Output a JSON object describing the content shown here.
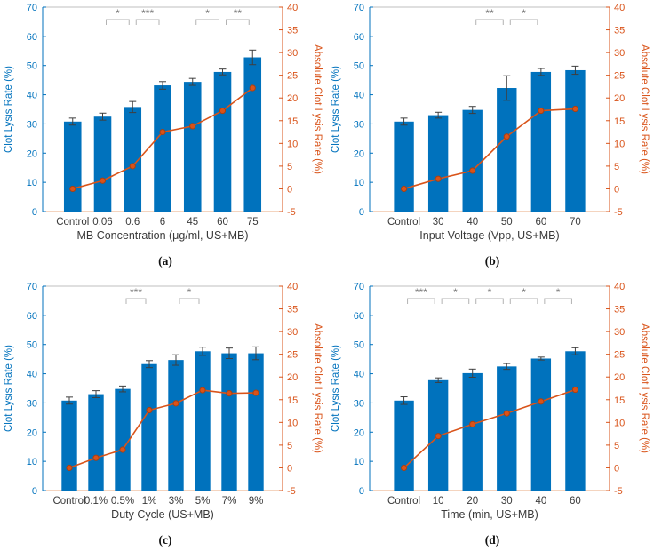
{
  "figure": {
    "background": "#ffffff",
    "left_axis_label": "Clot Lysis Rate (%)",
    "right_axis_label": "Absolute Clot Lysis Rate (%)"
  },
  "colors": {
    "bar": "#0072BD",
    "line": "#D95319",
    "marker_fill": "#D95319",
    "marker_edge": "#A84012",
    "left_axis": "#0072BD",
    "right_axis": "#D95319",
    "error_bar": "#3F3F3F",
    "x_tick_text": "#3A3A3A",
    "top_spine": "#BFBFBF",
    "bottom_spine": "#E8A87F",
    "bracket": "#B3B3B3",
    "sig_text": "#757575",
    "caption": "#111111"
  },
  "axes": {
    "left_label": "Clot Lysis Rate (%)",
    "right_label": "Absolute Clot Lysis Rate (%)",
    "left_min": 0,
    "left_max": 70,
    "right_min": -5,
    "right_max": 40,
    "left_ticks": [
      0,
      10,
      20,
      30,
      40,
      50,
      60,
      70
    ],
    "right_ticks": [
      -5,
      0,
      5,
      10,
      15,
      20,
      25,
      30,
      35,
      40
    ],
    "grid": false,
    "legend": "none"
  },
  "chart_data": [
    {
      "type": "bar",
      "caption": "(a)",
      "xlabel": "MB Concentration (μg/ml, US+MB)",
      "ylabel": "Clot Lysis Rate (%)",
      "ylabel_right": "Absolute Clot Lysis Rate (%)",
      "ylim": [
        0,
        70
      ],
      "ylim_right": [
        -5,
        40
      ],
      "categories": [
        "Control",
        "0.06",
        "0.6",
        "6",
        "45",
        "60",
        "75"
      ],
      "series": [
        {
          "name": "Clot Lysis Rate (%)",
          "type": "bar",
          "axis": "left",
          "values": [
            30.8,
            32.5,
            35.8,
            43.2,
            44.4,
            47.8,
            52.8
          ],
          "errors": [
            1.2,
            1.2,
            1.9,
            1.3,
            1.2,
            1.0,
            2.5
          ]
        },
        {
          "name": "Absolute Clot Lysis Rate (%)",
          "type": "line",
          "axis": "right",
          "values": [
            0,
            1.8,
            5.0,
            12.5,
            13.8,
            17.2,
            22.2
          ]
        }
      ],
      "significance": [
        {
          "from": 1,
          "to": 2,
          "label": "*"
        },
        {
          "from": 2,
          "to": 3,
          "label": "***"
        },
        {
          "from": 4,
          "to": 5,
          "label": "*"
        },
        {
          "from": 5,
          "to": 6,
          "label": "**"
        }
      ]
    },
    {
      "type": "bar",
      "caption": "(b)",
      "xlabel": "Input Voltage (Vpp, US+MB)",
      "ylabel": "Clot Lysis Rate (%)",
      "ylabel_right": "Absolute Clot Lysis Rate (%)",
      "ylim": [
        0,
        70
      ],
      "ylim_right": [
        -5,
        40
      ],
      "categories": [
        "Control",
        "30",
        "40",
        "50",
        "60",
        "70"
      ],
      "series": [
        {
          "name": "Clot Lysis Rate (%)",
          "type": "bar",
          "axis": "left",
          "values": [
            30.8,
            33.0,
            34.8,
            42.3,
            47.8,
            48.4
          ],
          "errors": [
            1.2,
            1.0,
            1.2,
            4.2,
            1.2,
            1.4
          ]
        },
        {
          "name": "Absolute Clot Lysis Rate (%)",
          "type": "line",
          "axis": "right",
          "values": [
            0,
            2.2,
            4.0,
            11.5,
            17.2,
            17.6
          ]
        }
      ],
      "significance": [
        {
          "from": 2,
          "to": 3,
          "label": "**"
        },
        {
          "from": 3,
          "to": 4,
          "label": "*"
        }
      ]
    },
    {
      "type": "bar",
      "caption": "(c)",
      "xlabel": "Duty Cycle (US+MB)",
      "ylabel": "Clot Lysis Rate (%)",
      "ylabel_right": "Absolute Clot Lysis Rate (%)",
      "ylim": [
        0,
        70
      ],
      "ylim_right": [
        -5,
        40
      ],
      "categories": [
        "Control",
        "0.1%",
        "0.5%",
        "1%",
        "3%",
        "5%",
        "7%",
        "9%"
      ],
      "series": [
        {
          "name": "Clot Lysis Rate (%)",
          "type": "bar",
          "axis": "left",
          "values": [
            30.8,
            33.0,
            34.8,
            43.3,
            44.7,
            47.7,
            47.0,
            47.0
          ],
          "errors": [
            1.2,
            1.2,
            1.0,
            1.2,
            1.8,
            1.4,
            1.8,
            2.2
          ]
        },
        {
          "name": "Absolute Clot Lysis Rate (%)",
          "type": "line",
          "axis": "right",
          "values": [
            0,
            2.2,
            4.0,
            12.7,
            14.2,
            17.1,
            16.4,
            16.5
          ]
        }
      ],
      "significance": [
        {
          "from": 2,
          "to": 3,
          "label": "***"
        },
        {
          "from": 4,
          "to": 5,
          "label": "*"
        }
      ]
    },
    {
      "type": "bar",
      "caption": "(d)",
      "xlabel": "Time (min, US+MB)",
      "ylabel": "Clot Lysis Rate (%)",
      "ylabel_right": "Absolute Clot Lysis Rate (%)",
      "ylim": [
        0,
        70
      ],
      "ylim_right": [
        -5,
        40
      ],
      "categories": [
        "Control",
        "10",
        "20",
        "30",
        "40",
        "60"
      ],
      "series": [
        {
          "name": "Clot Lysis Rate (%)",
          "type": "bar",
          "axis": "left",
          "values": [
            30.8,
            37.8,
            40.2,
            42.5,
            45.2,
            47.7
          ],
          "errors": [
            1.3,
            0.8,
            1.4,
            1.0,
            0.5,
            1.2
          ]
        },
        {
          "name": "Absolute Clot Lysis Rate (%)",
          "type": "line",
          "axis": "right",
          "values": [
            0,
            7.0,
            9.6,
            12.0,
            14.6,
            17.2
          ]
        }
      ],
      "significance": [
        {
          "from": 0,
          "to": 1,
          "label": "***"
        },
        {
          "from": 1,
          "to": 2,
          "label": "*"
        },
        {
          "from": 2,
          "to": 3,
          "label": "*"
        },
        {
          "from": 3,
          "to": 4,
          "label": "*"
        },
        {
          "from": 4,
          "to": 5,
          "label": "*"
        }
      ]
    }
  ]
}
